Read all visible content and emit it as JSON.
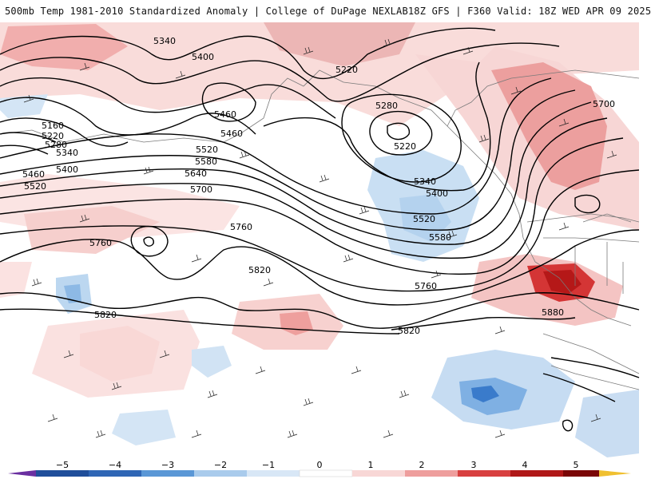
{
  "header": {
    "title_left": "500mb Temp 1981-2010 Standardized Anomaly | College of DuPage NEXLAB",
    "title_right": "18Z GFS | F360 Valid: 18Z WED APR 09 2025"
  },
  "contour_labels": [
    {
      "id": "lbl-5340-top",
      "text": "5340"
    },
    {
      "id": "lbl-5400-top",
      "text": "5400"
    },
    {
      "id": "lbl-5220-top",
      "text": "5220"
    },
    {
      "id": "lbl-5460-mid",
      "text": "5460"
    },
    {
      "id": "lbl-5280-low",
      "text": "5280"
    },
    {
      "id": "lbl-5220-low",
      "text": "5220"
    },
    {
      "id": "lbl-5700-ne",
      "text": "5700"
    },
    {
      "id": "lbl-5160",
      "text": "5160"
    },
    {
      "id": "lbl-5220-w",
      "text": "5220"
    },
    {
      "id": "lbl-5280-w",
      "text": "5280"
    },
    {
      "id": "lbl-5340-w",
      "text": "5340"
    },
    {
      "id": "lbl-5460-c",
      "text": "5460"
    },
    {
      "id": "lbl-5400-w",
      "text": "5400"
    },
    {
      "id": "lbl-5520-c",
      "text": "5520"
    },
    {
      "id": "lbl-5460-w",
      "text": "5460"
    },
    {
      "id": "lbl-5580-c",
      "text": "5580"
    },
    {
      "id": "lbl-5520-w",
      "text": "5520"
    },
    {
      "id": "lbl-5640-c",
      "text": "5640"
    },
    {
      "id": "lbl-5700-c",
      "text": "5700"
    },
    {
      "id": "lbl-5340-e",
      "text": "5340"
    },
    {
      "id": "lbl-5400-e",
      "text": "5400"
    },
    {
      "id": "lbl-5520-e",
      "text": "5520"
    },
    {
      "id": "lbl-5580-e",
      "text": "5580"
    },
    {
      "id": "lbl-5760-w",
      "text": "5760"
    },
    {
      "id": "lbl-5760-c",
      "text": "5760"
    },
    {
      "id": "lbl-5820-c",
      "text": "5820"
    },
    {
      "id": "lbl-5760-e",
      "text": "5760"
    },
    {
      "id": "lbl-5880",
      "text": "5880"
    },
    {
      "id": "lbl-5820-w",
      "text": "5820"
    },
    {
      "id": "lbl-5820-s",
      "text": "5820"
    }
  ],
  "colorbar": {
    "ticks": [
      "−5",
      "−4",
      "−3",
      "−2",
      "−1",
      "0",
      "1",
      "2",
      "3",
      "4",
      "5"
    ],
    "colors": [
      "#6a2fa0",
      "#1f4e9a",
      "#3a78c8",
      "#7fb0e0",
      "#c5dcf2",
      "#ffffff",
      "#ffffff",
      "#f4c6c6",
      "#e98a8a",
      "#d23030",
      "#8c0a0a",
      "#f0c030"
    ]
  }
}
